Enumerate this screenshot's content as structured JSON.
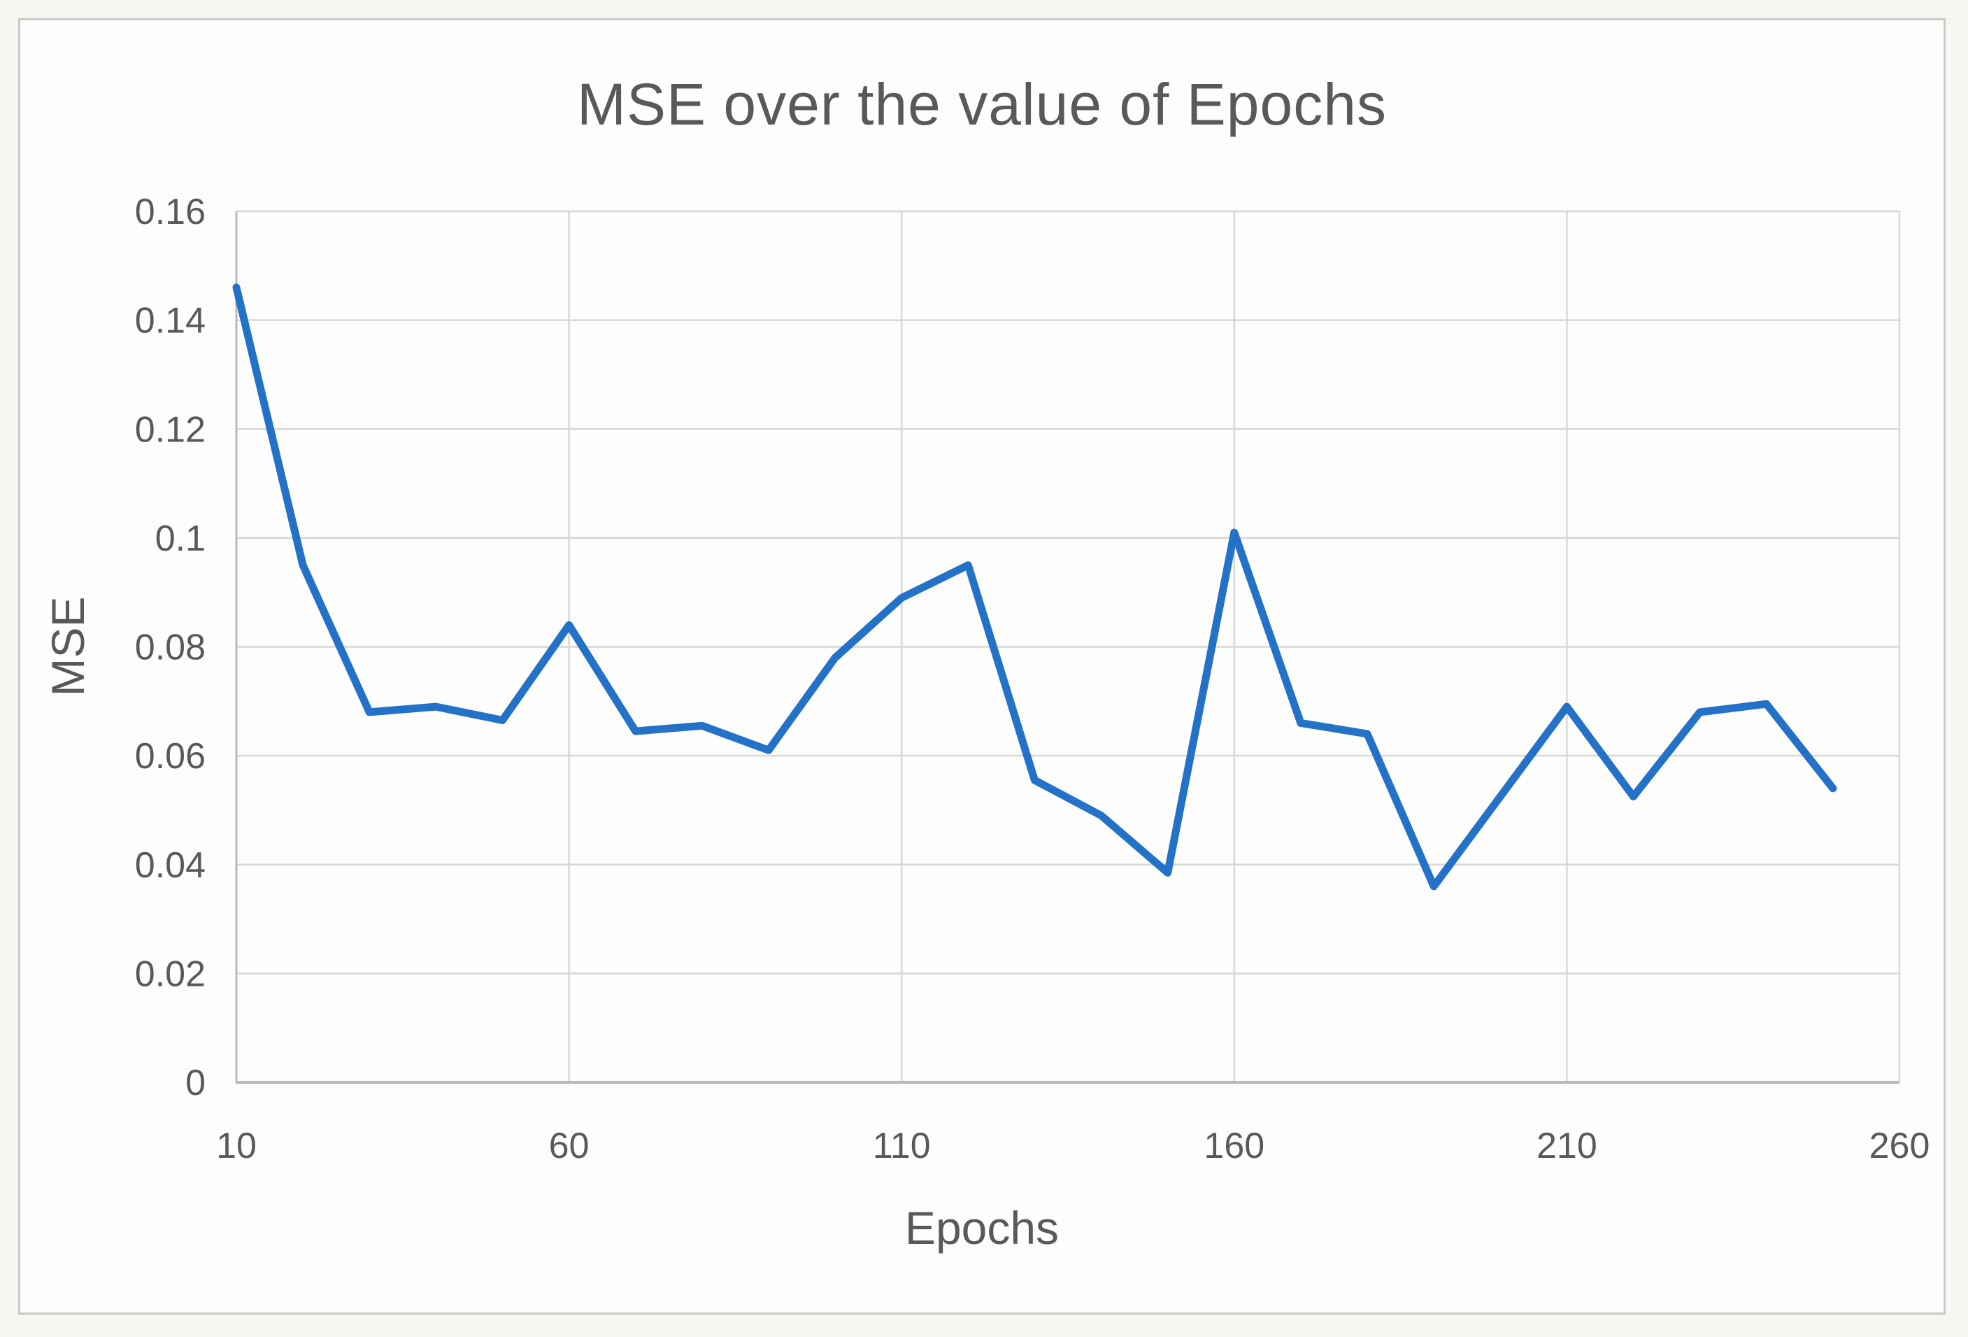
{
  "chart": {
    "title": "MSE over the value of Epochs",
    "x_axis_title": "Epochs",
    "y_axis_title": "MSE"
  },
  "colors": {
    "line": "#2372c8",
    "gridline": "#d7d7d7",
    "axis_line": "#b9b9b9",
    "text": "#595959",
    "frame_border": "#c9c9c9",
    "plot_background": "#fdfdfc"
  },
  "chart_data": {
    "type": "line",
    "title": "MSE over the value of Epochs",
    "xlabel": "Epochs",
    "ylabel": "MSE",
    "x": [
      10,
      20,
      30,
      40,
      50,
      60,
      70,
      80,
      90,
      100,
      110,
      120,
      130,
      140,
      150,
      160,
      170,
      180,
      190,
      200,
      210,
      220,
      230,
      240,
      250
    ],
    "y": [
      0.146,
      0.095,
      0.068,
      0.069,
      0.0665,
      0.084,
      0.0645,
      0.0655,
      0.061,
      0.078,
      0.089,
      0.095,
      0.0555,
      0.049,
      0.0385,
      0.101,
      0.066,
      0.064,
      0.036,
      0.0525,
      0.069,
      0.0525,
      0.068,
      0.0695,
      0.054
    ],
    "xlim": [
      10,
      260
    ],
    "ylim": [
      0,
      0.16
    ],
    "x_ticks": [
      10,
      60,
      110,
      160,
      210,
      260
    ],
    "x_tick_labels": [
      "10",
      "60",
      "110",
      "160",
      "210",
      "260"
    ],
    "y_ticks": [
      0,
      0.02,
      0.04,
      0.06,
      0.08,
      0.1,
      0.12,
      0.14,
      0.16
    ],
    "y_tick_labels": [
      "0",
      "0.02",
      "0.04",
      "0.06",
      "0.08",
      "0.1",
      "0.12",
      "0.14",
      "0.16"
    ],
    "grid": true,
    "legend_position": "none",
    "series_name": "MSE"
  }
}
